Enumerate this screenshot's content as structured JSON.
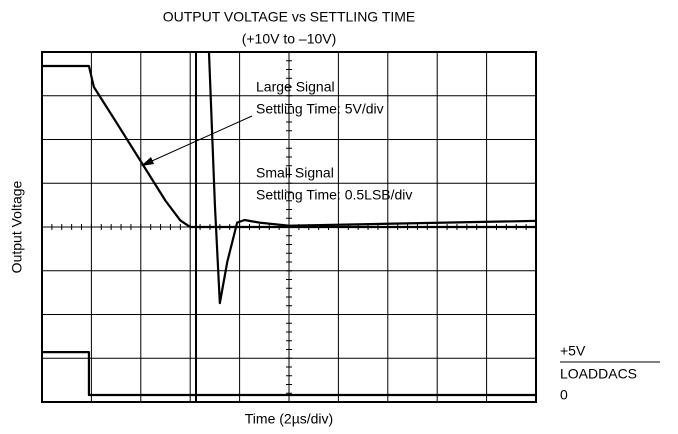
{
  "chart_data": {
    "type": "line",
    "title": "OUTPUT VOLTAGE vs SETTLING TIME",
    "subtitle": "(+10V to –10V)",
    "x_label": "Time (2µs/div)",
    "y_label": "Output Voltage",
    "xlim": [
      0,
      10
    ],
    "ylim": [
      0,
      8
    ],
    "grid": true,
    "series": [
      {
        "color": "#000000",
        "x": [
          0,
          0.95,
          1.05,
          1.5,
          2,
          2.5,
          2.8,
          3.0,
          10
        ],
        "values": [
          7.68,
          7.68,
          7.2,
          6.4,
          5.5,
          4.6,
          4.15,
          4.0,
          4.0
        ]
      },
      {
        "color": "#000000",
        "x": [
          3.38,
          3.5,
          3.6,
          3.75,
          3.95,
          4.1,
          4.4,
          5,
          10
        ],
        "values": [
          8,
          4.5,
          2.26,
          3.2,
          4.1,
          4.16,
          4.1,
          4.03,
          4.14
        ]
      },
      {
        "color": "#000000",
        "x": [
          0,
          0.95,
          0.95,
          10
        ],
        "values": [
          1.14,
          1.14,
          0.16,
          0.16
        ]
      }
    ],
    "annotations": [
      "Large Signal",
      "Settling Time: 5V/div",
      "Small Signal",
      "Settling Time: 0.5LSB/div"
    ],
    "right_labels": [
      "+5V",
      "LOADDACS",
      "0"
    ]
  }
}
